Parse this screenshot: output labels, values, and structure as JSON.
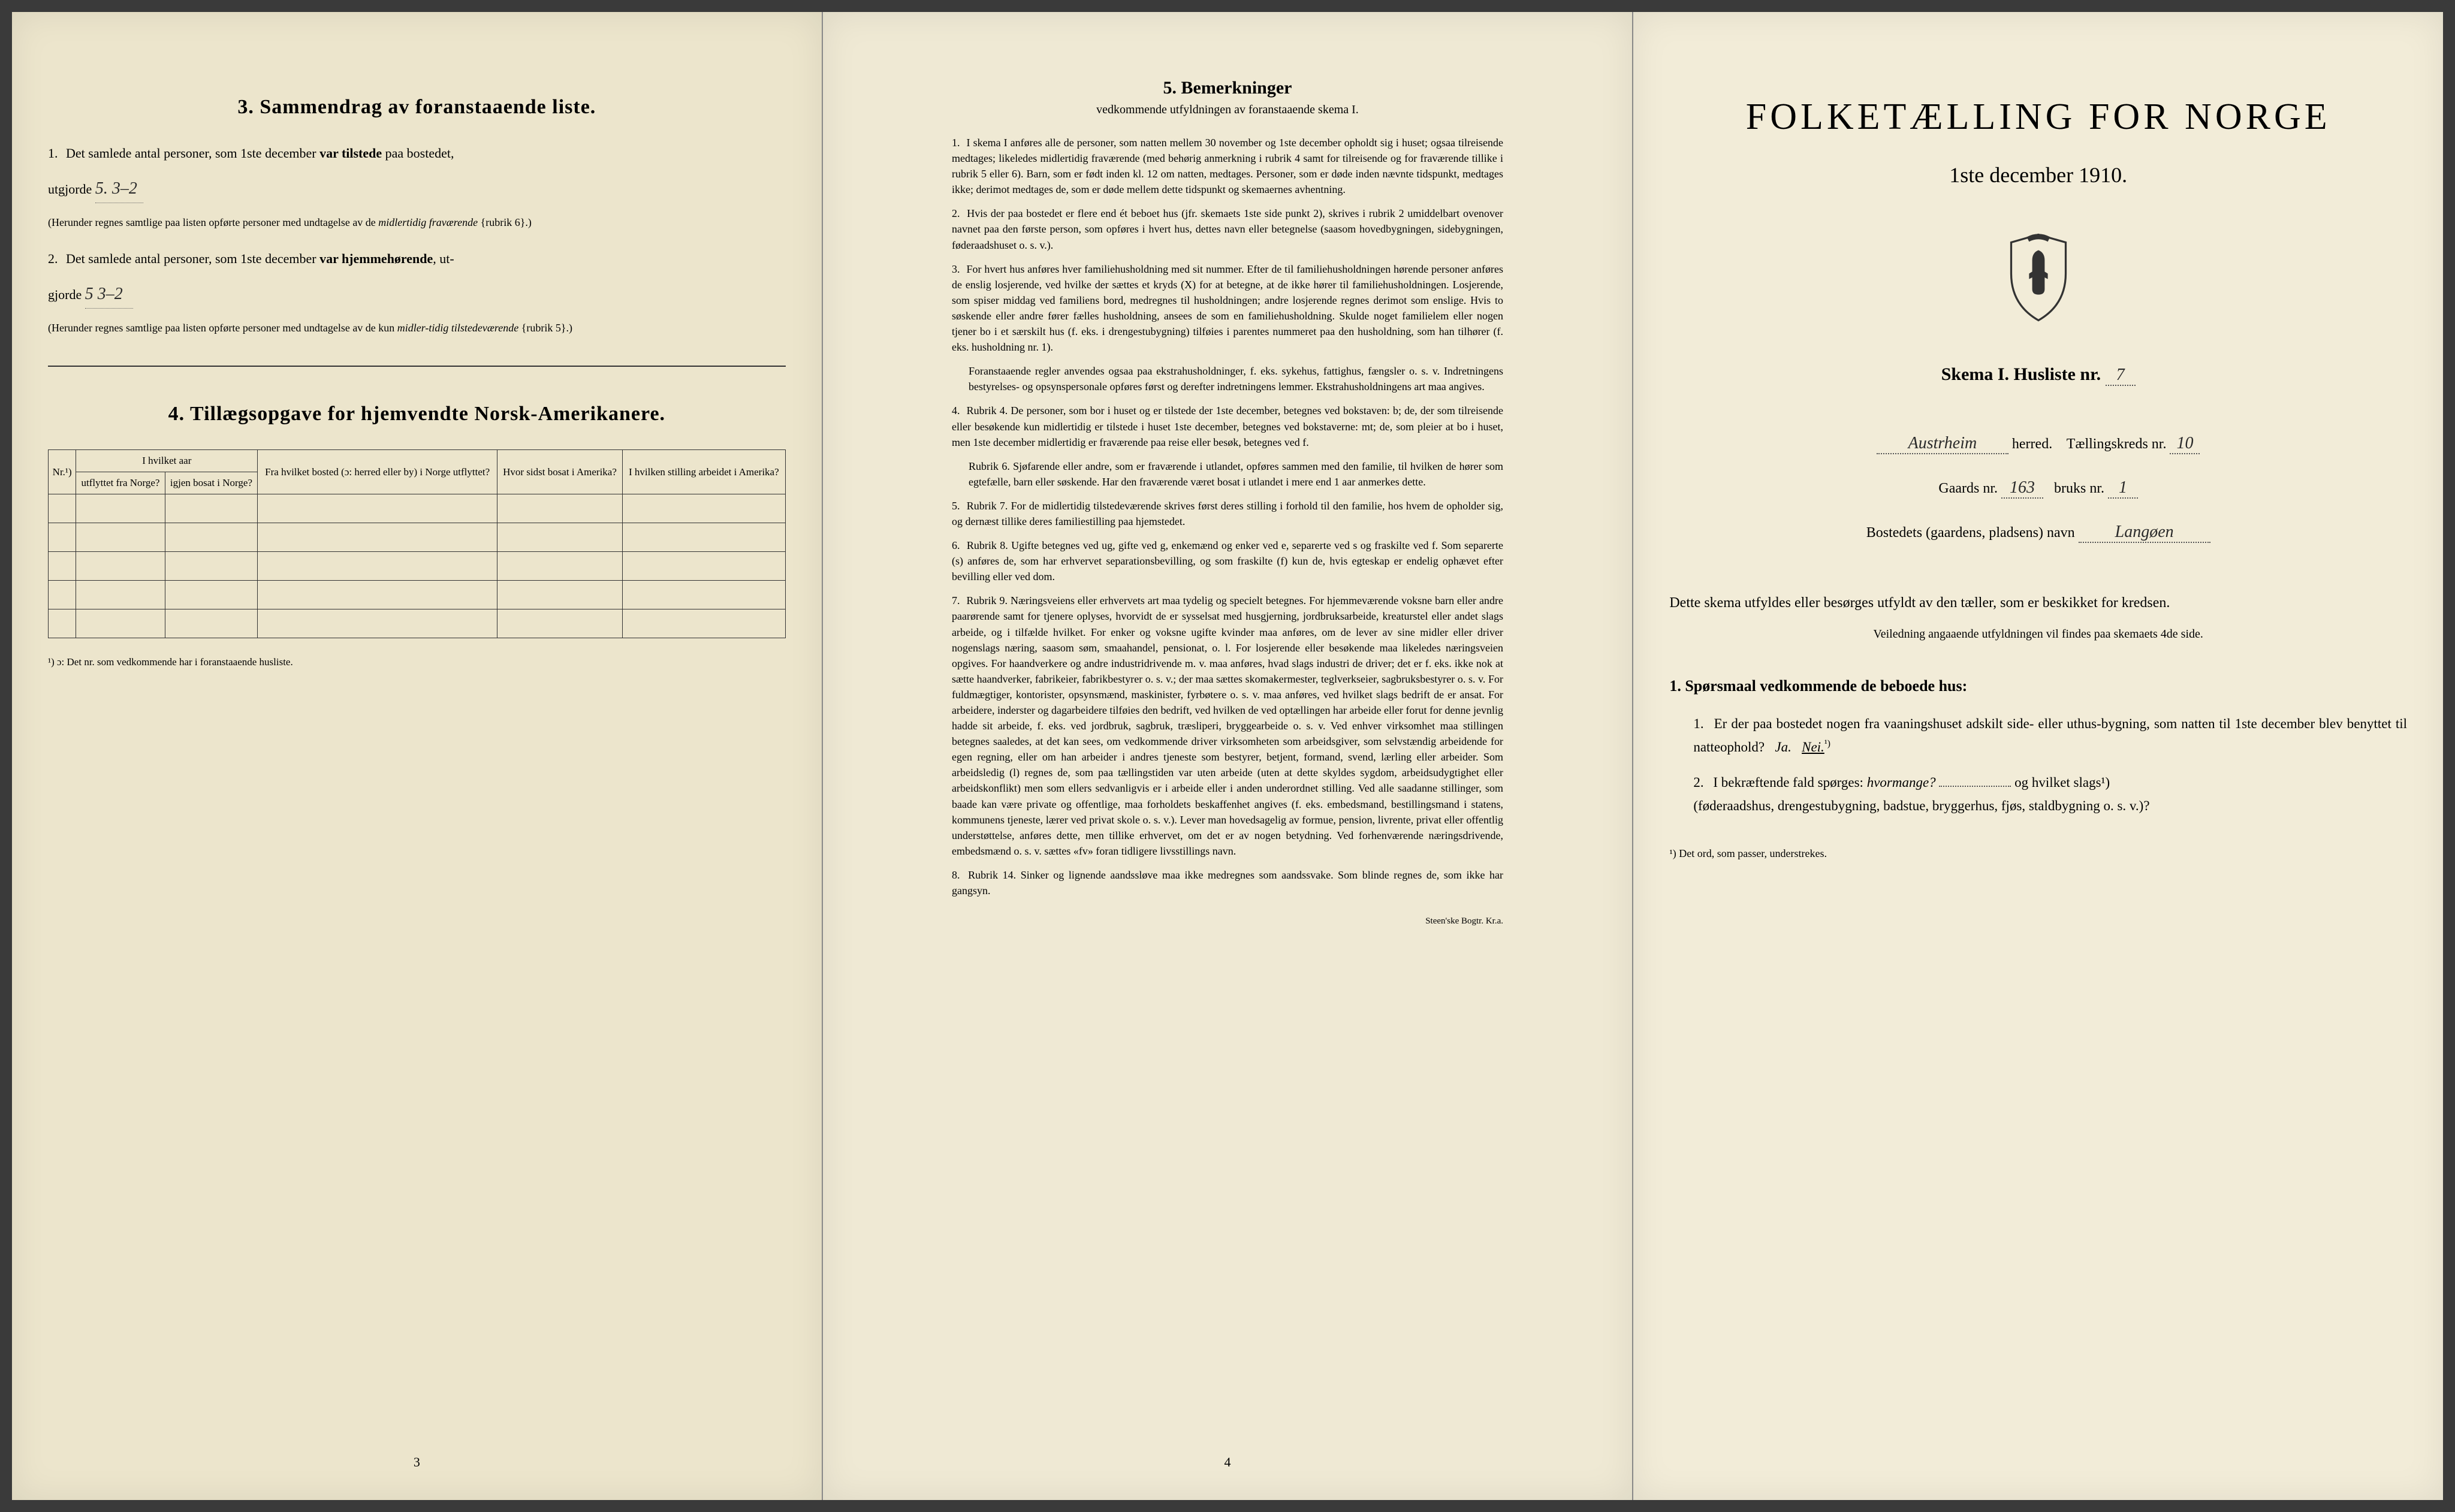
{
  "page1": {
    "section3": {
      "number": "3.",
      "title": "Sammendrag av foranstaaende liste.",
      "item1_num": "1.",
      "item1_text_a": "Det samlede antal personer, som 1ste december",
      "item1_bold": "var tilstede",
      "item1_text_b": "paa bostedet,",
      "item1_line2": "utgjorde",
      "item1_hand": "5.    3–2",
      "item1_note": "(Herunder regnes samtlige paa listen opførte personer med undtagelse av de",
      "item1_note_italic": "midlertidig fraværende",
      "item1_note_end": "{rubrik 6}.)",
      "item2_num": "2.",
      "item2_text_a": "Det samlede antal personer, som 1ste december",
      "item2_bold": "var hjemmehørende",
      "item2_text_b": ", ut-",
      "item2_line2": "gjorde",
      "item2_hand": "5    3–2",
      "item2_note": "(Herunder regnes samtlige paa listen opførte personer med undtagelse av de kun",
      "item2_note_italic": "midler-tidig tilstedeværende",
      "item2_note_end": "{rubrik 5}.)"
    },
    "section4": {
      "number": "4.",
      "title": "Tillægsopgave for hjemvendte Norsk-Amerikanere.",
      "table": {
        "col_nr": "Nr.¹)",
        "col_group": "I hvilket aar",
        "col_utflyttet": "utflyttet fra Norge?",
        "col_igjen": "igjen bosat i Norge?",
        "col_bosted": "Fra hvilket bosted (ɔ: herred eller by) i Norge utflyttet?",
        "col_hvor": "Hvor sidst bosat i Amerika?",
        "col_stilling": "I hvilken stilling arbeidet i Amerika?"
      },
      "footnote": "¹) ɔ: Det nr. som vedkommende har i foranstaaende husliste."
    },
    "page_number": "3"
  },
  "page2": {
    "title_num": "5.",
    "title": "Bemerkninger",
    "subtitle": "vedkommende utfyldningen av foranstaaende skema I.",
    "items": [
      {
        "num": "1.",
        "text": "I skema I anføres alle de personer, som natten mellem 30 november og 1ste december opholdt sig i huset; ogsaa tilreisende medtages; likeledes midlertidig fraværende (med behørig anmerkning i rubrik 4 samt for tilreisende og for fraværende tillike i rubrik 5 eller 6). Barn, som er født inden kl. 12 om natten, medtages. Personer, som er døde inden nævnte tidspunkt, medtages ikke; derimot medtages de, som er døde mellem dette tidspunkt og skemaernes avhentning."
      },
      {
        "num": "2.",
        "text": "Hvis der paa bostedet er flere end ét beboet hus (jfr. skemaets 1ste side punkt 2), skrives i rubrik 2 umiddelbart ovenover navnet paa den første person, som opføres i hvert hus, dettes navn eller betegnelse (saasom hovedbygningen, sidebygningen, føderaadshuset o. s. v.)."
      },
      {
        "num": "3.",
        "text": "For hvert hus anføres hver familiehusholdning med sit nummer. Efter de til familiehusholdningen hørende personer anføres de enslig losjerende, ved hvilke der sættes et kryds (X) for at betegne, at de ikke hører til familiehusholdningen. Losjerende, som spiser middag ved familiens bord, medregnes til husholdningen; andre losjerende regnes derimot som enslige. Hvis to søskende eller andre fører fælles husholdning, ansees de som en familiehusholdning. Skulde noget familielem eller nogen tjener bo i et særskilt hus (f. eks. i drengestubygning) tilføies i parentes nummeret paa den husholdning, som han tilhører (f. eks. husholdning nr. 1).",
        "indent": "Foranstaaende regler anvendes ogsaa paa ekstrahusholdninger, f. eks. sykehus, fattighus, fængsler o. s. v. Indretningens bestyrelses- og opsynspersonale opføres først og derefter indretningens lemmer. Ekstrahusholdningens art maa angives."
      },
      {
        "num": "4.",
        "text": "Rubrik 4. De personer, som bor i huset og er tilstede der 1ste december, betegnes ved bokstaven: b; de, der som tilreisende eller besøkende kun midlertidig er tilstede i huset 1ste december, betegnes ved bokstaverne: mt; de, som pleier at bo i huset, men 1ste december midlertidig er fraværende paa reise eller besøk, betegnes ved f.",
        "indent": "Rubrik 6. Sjøfarende eller andre, som er fraværende i utlandet, opføres sammen med den familie, til hvilken de hører som egtefælle, barn eller søskende. Har den fraværende været bosat i utlandet i mere end 1 aar anmerkes dette."
      },
      {
        "num": "5.",
        "text": "Rubrik 7. For de midlertidig tilstedeværende skrives først deres stilling i forhold til den familie, hos hvem de opholder sig, og dernæst tillike deres familiestilling paa hjemstedet."
      },
      {
        "num": "6.",
        "text": "Rubrik 8. Ugifte betegnes ved ug, gifte ved g, enkemænd og enker ved e, separerte ved s og fraskilte ved f. Som separerte (s) anføres de, som har erhvervet separationsbevilling, og som fraskilte (f) kun de, hvis egteskap er endelig ophævet efter bevilling eller ved dom."
      },
      {
        "num": "7.",
        "text": "Rubrik 9. Næringsveiens eller erhvervets art maa tydelig og specielt betegnes. For hjemmeværende voksne barn eller andre paarørende samt for tjenere oplyses, hvorvidt de er sysselsat med husgjerning, jordbruksarbeide, kreaturstel eller andet slags arbeide, og i tilfælde hvilket. For enker og voksne ugifte kvinder maa anføres, om de lever av sine midler eller driver nogenslags næring, saasom søm, smaahandel, pensionat, o. l. For losjerende eller besøkende maa likeledes næringsveien opgives. For haandverkere og andre industridrivende m. v. maa anføres, hvad slags industri de driver; det er f. eks. ikke nok at sætte haandverker, fabrikeier, fabrikbestyrer o. s. v.; der maa sættes skomakermester, teglverkseier, sagbruksbestyrer o. s. v. For fuldmægtiger, kontorister, opsynsmænd, maskinister, fyrbøtere o. s. v. maa anføres, ved hvilket slags bedrift de er ansat. For arbeidere, inderster og dagarbeidere tilføies den bedrift, ved hvilken de ved optællingen har arbeide eller forut for denne jevnlig hadde sit arbeide, f. eks. ved jordbruk, sagbruk, træsliperi, bryggearbeide o. s. v. Ved enhver virksomhet maa stillingen betegnes saaledes, at det kan sees, om vedkommende driver virksomheten som arbeidsgiver, som selvstændig arbeidende for egen regning, eller om han arbeider i andres tjeneste som bestyrer, betjent, formand, svend, lærling eller arbeider. Som arbeidsledig (l) regnes de, som paa tællingstiden var uten arbeide (uten at dette skyldes sygdom, arbeidsudygtighet eller arbeidskonflikt) men som ellers sedvanligvis er i arbeide eller i anden underordnet stilling. Ved alle saadanne stillinger, som baade kan være private og offentlige, maa forholdets beskaffenhet angives (f. eks. embedsmand, bestillingsmand i statens, kommunens tjeneste, lærer ved privat skole o. s. v.). Lever man hovedsagelig av formue, pension, livrente, privat eller offentlig understøttelse, anføres dette, men tillike erhvervet, om det er av nogen betydning. Ved forhenværende næringsdrivende, embedsmænd o. s. v. sættes «fv» foran tidligere livsstillings navn."
      },
      {
        "num": "8.",
        "text": "Rubrik 14. Sinker og lignende aandssløve maa ikke medregnes som aandssvake. Som blinde regnes de, som ikke har gangsyn."
      }
    ],
    "page_number": "4",
    "imprint": "Steen'ske Bogtr. Kr.a."
  },
  "page3": {
    "main_title": "FOLKETÆLLING FOR NORGE",
    "sub_title": "1ste december 1910.",
    "skema_label": "Skema I.   Husliste nr.",
    "husliste_nr": "7",
    "herred_value": "Austrheim",
    "herred_label": "herred.",
    "taellingskreds_label": "Tællingskreds nr.",
    "taellingskreds_nr": "10",
    "gaards_label": "Gaards nr.",
    "gaards_nr": "163",
    "bruks_label": "bruks nr.",
    "bruks_nr": "1",
    "bosted_label": "Bostedets (gaardens, pladsens) navn",
    "bosted_value": "Langøen",
    "intro": "Dette skema utfyldes eller besørges utfyldt av den tæller, som er beskikket for kredsen.",
    "intro_sub": "Veiledning angaaende utfyldningen vil findes paa skemaets 4de side.",
    "q_heading": "1. Spørsmaal vedkommende de beboede hus:",
    "q1_num": "1.",
    "q1_text": "Er der paa bostedet nogen fra vaaningshuset adskilt side- eller uthus-bygning, som natten til 1ste december blev benyttet til natteophold?",
    "q1_ja": "Ja.",
    "q1_nei": "Nei.",
    "q1_sup": "¹)",
    "q2_num": "2.",
    "q2_text_a": "I bekræftende fald spørges:",
    "q2_italic": "hvormange?",
    "q2_text_b": "og hvilket slags¹)",
    "q2_text_c": "(føderaadshus, drengestubygning, badstue, bryggerhus, fjøs, staldbygning o. s. v.)?",
    "footnote": "¹) Det ord, som passer, understrekes."
  }
}
